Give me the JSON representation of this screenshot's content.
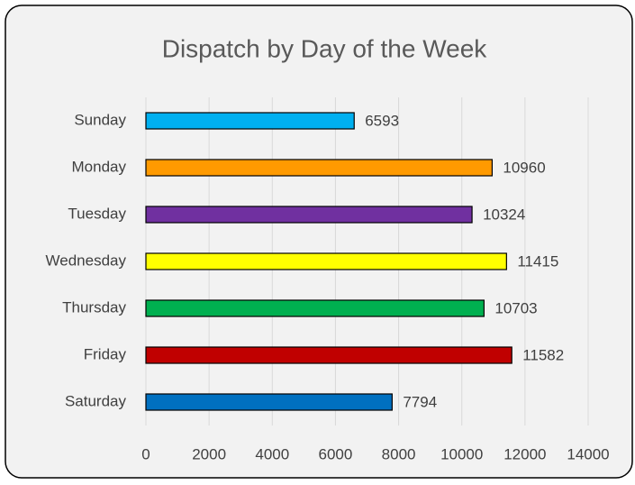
{
  "chart_data": {
    "type": "bar",
    "orientation": "horizontal",
    "title": "Dispatch by Day of the Week",
    "categories": [
      "Sunday",
      "Monday",
      "Tuesday",
      "Wednesday",
      "Thursday",
      "Friday",
      "Saturday"
    ],
    "values": [
      6593,
      10960,
      10324,
      11415,
      10703,
      11582,
      7794
    ],
    "colors": [
      "#00b0f0",
      "#ff9a00",
      "#7030a0",
      "#ffff00",
      "#00b050",
      "#c00000",
      "#0070c0"
    ],
    "xlim": [
      0,
      14000
    ],
    "xticks": [
      0,
      2000,
      4000,
      6000,
      8000,
      10000,
      12000,
      14000
    ],
    "grid": true
  }
}
